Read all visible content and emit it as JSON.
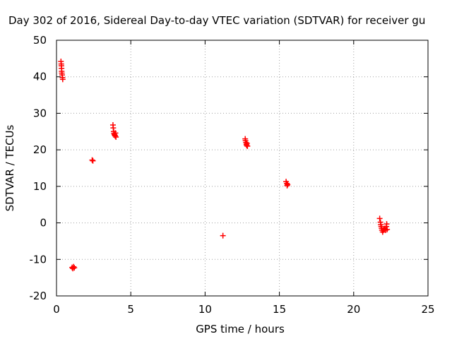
{
  "chart_data": {
    "type": "scatter",
    "title": "Day 302 of 2016, Sidereal Day-to-day VTEC variation (SDTVAR) for receiver gu",
    "xlabel": "GPS time / hours",
    "ylabel": "SDTVAR / TECUs",
    "xlim": [
      0,
      25
    ],
    "ylim": [
      -20,
      50
    ],
    "xticks": [
      0,
      5,
      10,
      15,
      20,
      25
    ],
    "yticks": [
      -20,
      -10,
      0,
      10,
      20,
      30,
      40,
      50
    ],
    "grid": true,
    "marker": "plus",
    "color": "#ff0000",
    "series": [
      {
        "points": [
          [
            0.3,
            44.2
          ],
          [
            0.32,
            43.5
          ],
          [
            0.33,
            43.0
          ],
          [
            0.34,
            42.3
          ],
          [
            0.35,
            41.5
          ],
          [
            0.36,
            41.0
          ],
          [
            0.38,
            40.5
          ],
          [
            0.4,
            39.8
          ],
          [
            0.42,
            39.3
          ],
          [
            1.05,
            -12.2
          ],
          [
            1.1,
            -12.5
          ],
          [
            1.15,
            -12.0
          ],
          [
            1.2,
            -12.3
          ],
          [
            2.4,
            17.2
          ],
          [
            2.45,
            17.0
          ],
          [
            3.8,
            26.8
          ],
          [
            3.82,
            26.0
          ],
          [
            3.85,
            25.0
          ],
          [
            3.87,
            24.5
          ],
          [
            3.9,
            24.2
          ],
          [
            3.92,
            24.0
          ],
          [
            3.95,
            23.8
          ],
          [
            3.97,
            24.6
          ],
          [
            4.0,
            23.5
          ],
          [
            11.2,
            -3.5
          ],
          [
            12.7,
            23.0
          ],
          [
            12.72,
            22.5
          ],
          [
            12.75,
            22.0
          ],
          [
            12.78,
            21.5
          ],
          [
            12.8,
            21.2
          ],
          [
            12.82,
            21.8
          ],
          [
            12.85,
            21.0
          ],
          [
            15.45,
            11.3
          ],
          [
            15.5,
            10.8
          ],
          [
            15.55,
            10.5
          ],
          [
            15.52,
            10.2
          ],
          [
            21.75,
            1.2
          ],
          [
            21.8,
            0.2
          ],
          [
            21.82,
            -0.5
          ],
          [
            21.85,
            -1.0
          ],
          [
            21.88,
            -1.5
          ],
          [
            21.9,
            -2.0
          ],
          [
            21.95,
            -2.5
          ],
          [
            22.0,
            -2.0
          ],
          [
            22.05,
            -1.8
          ],
          [
            22.1,
            -1.5
          ],
          [
            22.15,
            -2.0
          ],
          [
            22.2,
            -1.0
          ],
          [
            22.22,
            -0.3
          ],
          [
            22.25,
            -1.8
          ]
        ]
      }
    ]
  }
}
